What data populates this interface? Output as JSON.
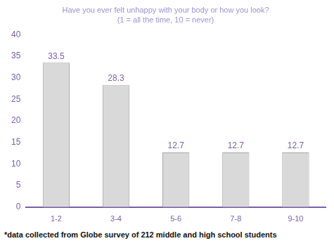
{
  "chart_data": {
    "type": "bar",
    "title": "Have you ever felt unhappy with your body or how you look?",
    "subtitle": "(1 = all the time, 10 = never)",
    "categories": [
      "1-2",
      "3-4",
      "5-6",
      "7-8",
      "9-10"
    ],
    "values": [
      33.5,
      28.3,
      12.7,
      12.7,
      12.7
    ],
    "color": "#d9d9d9",
    "ylim": [
      0,
      40
    ],
    "yticks": [
      0,
      5,
      10,
      15,
      20,
      25,
      30,
      35,
      40
    ],
    "grid": false,
    "data_labels": true,
    "annotations": [
      "*data collected from Globe survey of 212 middle and high school students"
    ]
  }
}
